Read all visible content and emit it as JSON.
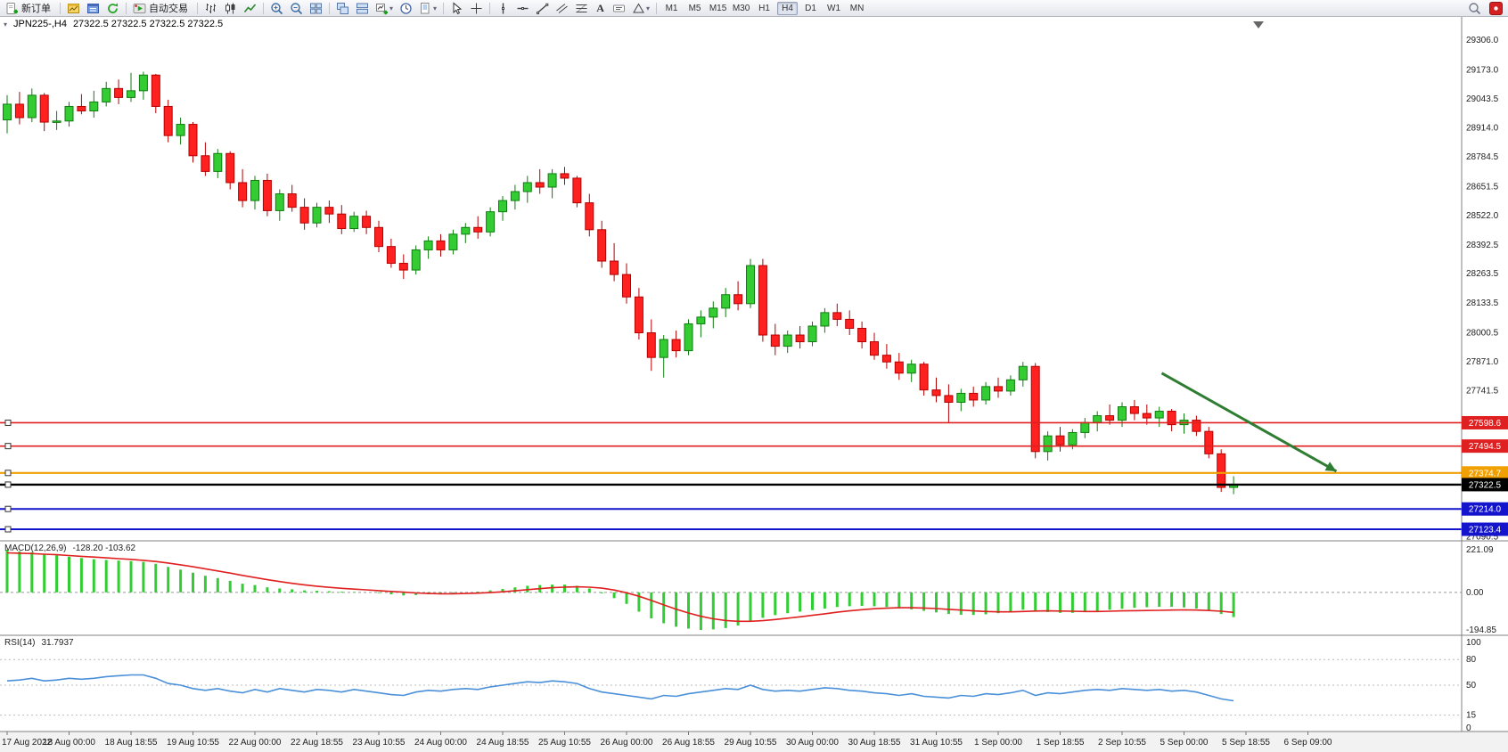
{
  "toolbar": {
    "new_order_label": "新订单",
    "autotrade_label": "自动交易",
    "timeframes": [
      "M1",
      "M5",
      "M15",
      "M30",
      "H1",
      "H4",
      "D1",
      "W1",
      "MN"
    ],
    "active_timeframe": "H4"
  },
  "colors": {
    "bull": "#33cc33",
    "bull_edge": "#0f7d0f",
    "bear": "#ff2020",
    "bear_edge": "#b30000",
    "separator": "#808080"
  },
  "chart_data": [
    {
      "type": "candlestick",
      "symbol_period": "JPN225-,H4",
      "ohlc_display": "27322.5 27322.5 27322.5 27322.5",
      "current_price": 27322.5,
      "y_axis_labels": [
        "29306.0",
        "29173.0",
        "29043.5",
        "28914.0",
        "28784.5",
        "28651.5",
        "28522.0",
        "28392.5",
        "28263.5",
        "28133.5",
        "28000.5",
        "27871.0",
        "27741.5",
        "27090.5"
      ],
      "time_labels": [
        "17 Aug 2022",
        "18 Aug 00:00",
        "18 Aug 18:55",
        "19 Aug 10:55",
        "22 Aug 00:00",
        "22 Aug 18:55",
        "23 Aug 10:55",
        "24 Aug 00:00",
        "24 Aug 18:55",
        "25 Aug 10:55",
        "26 Aug 00:00",
        "26 Aug 18:55",
        "29 Aug 10:55",
        "30 Aug 00:00",
        "30 Aug 18:55",
        "31 Aug 10:55",
        "1 Sep 00:00",
        "1 Sep 18:55",
        "2 Sep 10:55",
        "5 Sep 00:00",
        "5 Sep 18:55",
        "6 Sep 09:00"
      ],
      "bars_per_label": 5,
      "levels": [
        {
          "price": 27598.6,
          "label": "27598.6",
          "color": "#e02020",
          "width": 1.6
        },
        {
          "price": 27494.5,
          "label": "27494.5",
          "color": "#e02020",
          "width": 1.6
        },
        {
          "price": 27374.7,
          "label": "27374.7",
          "color": "#f0a000",
          "width": 2.2
        },
        {
          "price": 27322.5,
          "label": "27322.5",
          "color": "#000000",
          "width": 2.4
        },
        {
          "price": 27214.0,
          "label": "27214.0",
          "color": "#1414cc",
          "width": 2
        },
        {
          "price": 27123.4,
          "label": "27123.4",
          "color": "#1414cc",
          "width": 2
        }
      ],
      "arrow": {
        "start_bar": 93.2,
        "start_price": 27820,
        "end_bar": 107.3,
        "end_price": 27382,
        "color": "#2e7d32"
      },
      "candles": [
        [
          28950,
          29060,
          28890,
          29020
        ],
        [
          29020,
          29075,
          28930,
          28960
        ],
        [
          28960,
          29090,
          28940,
          29060
        ],
        [
          29060,
          29070,
          28900,
          28940
        ],
        [
          28940,
          28990,
          28905,
          28945
        ],
        [
          28945,
          29030,
          28920,
          29010
        ],
        [
          29010,
          29065,
          28975,
          28990
        ],
        [
          28990,
          29080,
          28960,
          29030
        ],
        [
          29030,
          29120,
          29010,
          29090
        ],
        [
          29090,
          29130,
          29020,
          29050
        ],
        [
          29050,
          29160,
          29030,
          29080
        ],
        [
          29080,
          29165,
          29040,
          29150
        ],
        [
          29150,
          29155,
          28980,
          29010
        ],
        [
          29010,
          29040,
          28850,
          28880
        ],
        [
          28880,
          28960,
          28840,
          28930
        ],
        [
          28930,
          28940,
          28760,
          28790
        ],
        [
          28790,
          28850,
          28700,
          28720
        ],
        [
          28720,
          28820,
          28690,
          28800
        ],
        [
          28800,
          28810,
          28640,
          28670
        ],
        [
          28670,
          28730,
          28560,
          28590
        ],
        [
          28590,
          28700,
          28550,
          28680
        ],
        [
          28680,
          28710,
          28520,
          28545
        ],
        [
          28545,
          28640,
          28500,
          28620
        ],
        [
          28620,
          28660,
          28540,
          28560
        ],
        [
          28560,
          28600,
          28460,
          28490
        ],
        [
          28490,
          28580,
          28470,
          28560
        ],
        [
          28560,
          28590,
          28490,
          28530
        ],
        [
          28530,
          28570,
          28440,
          28465
        ],
        [
          28465,
          28540,
          28450,
          28520
        ],
        [
          28520,
          28545,
          28440,
          28470
        ],
        [
          28470,
          28500,
          28360,
          28385
        ],
        [
          28385,
          28420,
          28290,
          28310
        ],
        [
          28310,
          28350,
          28240,
          28280
        ],
        [
          28280,
          28390,
          28260,
          28370
        ],
        [
          28370,
          28430,
          28330,
          28410
        ],
        [
          28410,
          28440,
          28340,
          28370
        ],
        [
          28370,
          28460,
          28350,
          28440
        ],
        [
          28440,
          28490,
          28400,
          28470
        ],
        [
          28470,
          28520,
          28420,
          28450
        ],
        [
          28450,
          28560,
          28430,
          28540
        ],
        [
          28540,
          28610,
          28500,
          28590
        ],
        [
          28590,
          28660,
          28550,
          28630
        ],
        [
          28630,
          28700,
          28580,
          28670
        ],
        [
          28670,
          28730,
          28620,
          28650
        ],
        [
          28650,
          28730,
          28600,
          28710
        ],
        [
          28710,
          28740,
          28660,
          28690
        ],
        [
          28690,
          28700,
          28560,
          28580
        ],
        [
          28580,
          28620,
          28430,
          28460
        ],
        [
          28460,
          28500,
          28290,
          28320
        ],
        [
          28320,
          28400,
          28230,
          28260
        ],
        [
          28260,
          28310,
          28130,
          28160
        ],
        [
          28160,
          28200,
          27970,
          28000
        ],
        [
          28000,
          28060,
          27830,
          27890
        ],
        [
          27890,
          27990,
          27800,
          27970
        ],
        [
          27970,
          28010,
          27890,
          27920
        ],
        [
          27920,
          28060,
          27900,
          28040
        ],
        [
          28040,
          28100,
          27980,
          28070
        ],
        [
          28070,
          28140,
          28020,
          28110
        ],
        [
          28110,
          28200,
          28070,
          28170
        ],
        [
          28170,
          28230,
          28100,
          28130
        ],
        [
          28130,
          28330,
          28110,
          28300
        ],
        [
          28300,
          28330,
          27960,
          27990
        ],
        [
          27990,
          28040,
          27900,
          27940
        ],
        [
          27940,
          28010,
          27910,
          27990
        ],
        [
          27990,
          28030,
          27930,
          27960
        ],
        [
          27960,
          28050,
          27940,
          28030
        ],
        [
          28030,
          28110,
          28000,
          28090
        ],
        [
          28090,
          28130,
          28030,
          28060
        ],
        [
          28060,
          28100,
          27990,
          28020
        ],
        [
          28020,
          28050,
          27930,
          27960
        ],
        [
          27960,
          28000,
          27880,
          27900
        ],
        [
          27900,
          27950,
          27840,
          27870
        ],
        [
          27870,
          27910,
          27790,
          27820
        ],
        [
          27820,
          27880,
          27780,
          27860
        ],
        [
          27860,
          27870,
          27720,
          27745
        ],
        [
          27745,
          27800,
          27690,
          27720
        ],
        [
          27720,
          27770,
          27600,
          27690
        ],
        [
          27690,
          27750,
          27650,
          27730
        ],
        [
          27730,
          27760,
          27670,
          27700
        ],
        [
          27700,
          27780,
          27680,
          27760
        ],
        [
          27760,
          27800,
          27710,
          27740
        ],
        [
          27740,
          27810,
          27720,
          27790
        ],
        [
          27790,
          27870,
          27760,
          27850
        ],
        [
          27850,
          27865,
          27440,
          27470
        ],
        [
          27470,
          27560,
          27430,
          27540
        ],
        [
          27540,
          27580,
          27470,
          27500
        ],
        [
          27500,
          27570,
          27480,
          27555
        ],
        [
          27555,
          27620,
          27530,
          27600
        ],
        [
          27600,
          27650,
          27560,
          27630
        ],
        [
          27630,
          27680,
          27590,
          27610
        ],
        [
          27610,
          27690,
          27580,
          27670
        ],
        [
          27670,
          27700,
          27610,
          27640
        ],
        [
          27640,
          27680,
          27590,
          27620
        ],
        [
          27620,
          27670,
          27580,
          27650
        ],
        [
          27650,
          27660,
          27560,
          27590
        ],
        [
          27590,
          27640,
          27550,
          27610
        ],
        [
          27610,
          27630,
          27540,
          27560
        ],
        [
          27560,
          27580,
          27440,
          27460
        ],
        [
          27460,
          27480,
          27290,
          27310
        ],
        [
          27310,
          27360,
          27280,
          27322.5
        ]
      ]
    },
    {
      "type": "macd",
      "label": "MACD(12,26,9)",
      "values_text": "-128.20 -103.62",
      "scale": [
        221.09,
        0,
        -194.85
      ],
      "colors": {
        "histogram": "#32cd32",
        "signal": "#e02020"
      },
      "histogram": [
        221.09,
        212,
        208,
        200,
        192,
        185,
        178,
        172,
        168,
        165,
        162,
        158,
        148,
        132,
        118,
        102,
        86,
        74,
        60,
        45,
        38,
        26,
        20,
        16,
        10,
        8,
        6,
        4,
        2,
        0,
        -4,
        -10,
        -16,
        -14,
        -10,
        -8,
        -4,
        0,
        4,
        10,
        18,
        26,
        34,
        38,
        40,
        40,
        34,
        20,
        -5,
        -30,
        -60,
        -100,
        -135,
        -160,
        -178,
        -188,
        -194.85,
        -192,
        -185,
        -172,
        -150,
        -132,
        -118,
        -108,
        -100,
        -92,
        -84,
        -76,
        -72,
        -70,
        -72,
        -76,
        -82,
        -88,
        -96,
        -104,
        -112,
        -116,
        -117,
        -114,
        -108,
        -100,
        -90,
        -95,
        -102,
        -106,
        -106,
        -102,
        -96,
        -90,
        -85,
        -80,
        -77,
        -75,
        -75,
        -78,
        -84,
        -94,
        -112,
        -128.2
      ],
      "signal": [
        205,
        203,
        201,
        198,
        195,
        191,
        187,
        183,
        179,
        175,
        171,
        166,
        160,
        152,
        143,
        133,
        122,
        111,
        100,
        88,
        77,
        66,
        56,
        47,
        39,
        32,
        26,
        21,
        17,
        13,
        9,
        5,
        1,
        -3,
        -6,
        -7,
        -7,
        -6,
        -4,
        -1,
        3,
        8,
        14,
        19,
        24,
        27,
        29,
        27,
        22,
        12,
        -2,
        -20,
        -42,
        -65,
        -87,
        -107,
        -124,
        -137,
        -146,
        -150,
        -150,
        -147,
        -141,
        -134,
        -127,
        -119,
        -111,
        -103,
        -96,
        -90,
        -85,
        -82,
        -80,
        -80,
        -81,
        -84,
        -88,
        -92,
        -96,
        -99,
        -101,
        -101,
        -99,
        -97,
        -96,
        -97,
        -98,
        -99,
        -99,
        -98,
        -96,
        -95,
        -94,
        -93,
        -92,
        -91,
        -92,
        -94,
        -98,
        -103.62
      ]
    },
    {
      "type": "rsi",
      "label": "RSI(14)",
      "value_text": "31.7937",
      "color": "#4a90d9",
      "scale_labels": [
        100,
        80,
        50,
        15,
        0
      ],
      "level_lines": [
        80,
        50,
        15
      ],
      "values": [
        55,
        56,
        58,
        55,
        56,
        58,
        57,
        58,
        60,
        61,
        62,
        62,
        58,
        52,
        50,
        46,
        44,
        46,
        43,
        41,
        45,
        42,
        46,
        44,
        42,
        45,
        44,
        42,
        45,
        43,
        41,
        39,
        38,
        42,
        44,
        43,
        45,
        46,
        45,
        48,
        50,
        52,
        54,
        53,
        55,
        54,
        52,
        46,
        42,
        40,
        38,
        36,
        34,
        38,
        37,
        40,
        42,
        44,
        46,
        45,
        50,
        45,
        43,
        44,
        43,
        45,
        47,
        46,
        44,
        43,
        41,
        40,
        38,
        40,
        37,
        36,
        35,
        38,
        37,
        40,
        39,
        41,
        44,
        38,
        41,
        40,
        42,
        44,
        45,
        44,
        46,
        45,
        44,
        45,
        43,
        44,
        42,
        38,
        34,
        31.79
      ]
    }
  ]
}
